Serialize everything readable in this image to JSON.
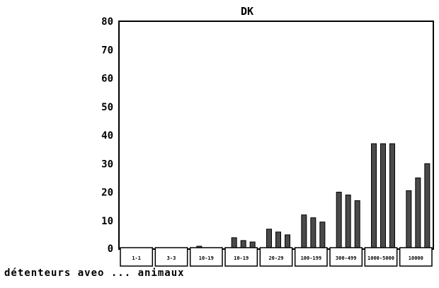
{
  "chart_data": {
    "type": "bar",
    "title": "DK",
    "xlabel": "détenteurs aveo ... animaux",
    "ylabel": "",
    "ylim": [
      0,
      80
    ],
    "yticks": [
      0,
      10,
      20,
      30,
      40,
      50,
      60,
      70,
      80
    ],
    "grid": false,
    "legend": "none",
    "categories": [
      "1-1",
      "3-3",
      "10-19",
      "10-19",
      "20-29",
      "100-199",
      "300-499",
      "1000-5000",
      "10000"
    ],
    "series": [
      {
        "values": [
          0.2,
          0.2,
          1.0,
          4.0,
          7.0,
          12.0,
          20.0,
          37.0,
          20.5
        ]
      },
      {
        "values": [
          0.2,
          0.2,
          0.5,
          3.0,
          6.0,
          11.0,
          19.0,
          37.0,
          25.0
        ]
      },
      {
        "values": [
          0.2,
          0.2,
          0.5,
          2.5,
          5.0,
          9.5,
          17.0,
          37.0,
          30.0
        ]
      }
    ],
    "colors": {
      "bar": "#4a4a4a",
      "axis": "#000000",
      "background": "#ffffff"
    }
  }
}
